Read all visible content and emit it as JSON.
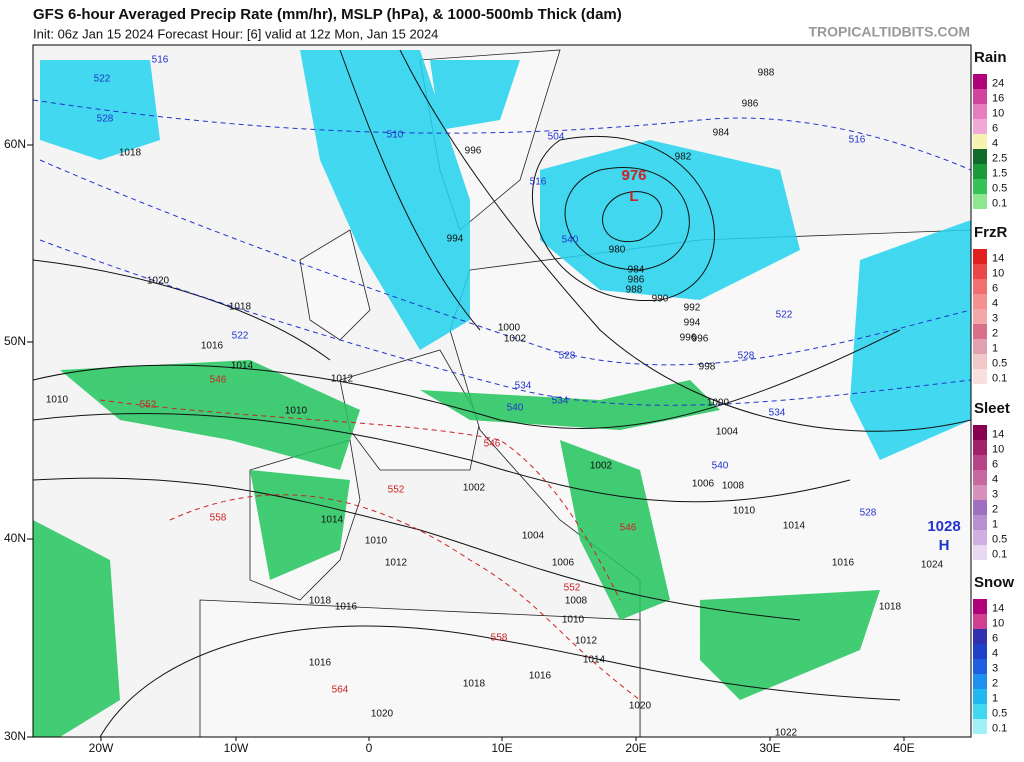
{
  "header": {
    "title": "GFS 6-hour Averaged Precip Rate (mm/hr), MSLP (hPa), & 1000-500mb Thick (dam)",
    "subtitle": "Init: 06z Jan 15 2024   Forecast Hour: [6]   valid at 12z Mon, Jan 15 2024",
    "site": "TROPICALTIDBITS.COM"
  },
  "axes": {
    "lat": [
      "60N",
      "50N",
      "40N",
      "30N"
    ],
    "lon": [
      "20W",
      "10W",
      "0",
      "10E",
      "20E",
      "30E",
      "40E"
    ]
  },
  "legends": [
    {
      "title": "Rain",
      "values": [
        24,
        16,
        10,
        6,
        4,
        2.5,
        1.5,
        0.5,
        0.1
      ]
    },
    {
      "title": "FrzR",
      "values": [
        14,
        10,
        6,
        4,
        3,
        2,
        1,
        0.5,
        0.1
      ]
    },
    {
      "title": "Sleet",
      "values": [
        14,
        10,
        6,
        4,
        3,
        2,
        1,
        0.5,
        0.1
      ]
    },
    {
      "title": "Snow",
      "values": [
        14,
        10,
        6,
        4,
        3,
        2,
        1,
        0.5,
        0.1
      ]
    }
  ],
  "map": {
    "centers": [
      "976",
      "L",
      "1028",
      "H"
    ],
    "isobars": [
      "1018",
      "1020",
      "1018",
      "1016",
      "1014",
      "1012",
      "1010",
      "1010",
      "1012",
      "1014",
      "1010",
      "1012",
      "1016",
      "1018",
      "1016",
      "1020",
      "1008",
      "1010",
      "1012",
      "1014",
      "1016",
      "1018",
      "1020",
      "1006",
      "1004",
      "1002",
      "1002",
      "1004",
      "1006",
      "1008",
      "1010",
      "1014",
      "1016",
      "1018",
      "1024",
      "1022",
      "1000",
      "1002",
      "996",
      "994",
      "996",
      "980",
      "984",
      "986",
      "988",
      "990",
      "992",
      "994",
      "996",
      "998",
      "1000",
      "982",
      "984",
      "986",
      "988"
    ],
    "thickness_blue": [
      "522",
      "528",
      "516",
      "510",
      "504",
      "516",
      "540",
      "522",
      "528",
      "534",
      "540",
      "534",
      "528",
      "522",
      "516",
      "540",
      "534",
      "528"
    ],
    "thickness_red": [
      "546",
      "552",
      "546",
      "552",
      "558",
      "552",
      "558",
      "564",
      "546"
    ]
  }
}
